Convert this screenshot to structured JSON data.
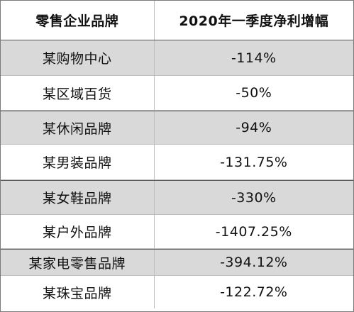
{
  "table": {
    "headers": {
      "name": "零售企业品牌",
      "value": "2020年一季度净利增幅"
    },
    "rows": [
      {
        "name": "某购物中心",
        "value": "-114%"
      },
      {
        "name": "某区域百货",
        "value": "-50%"
      },
      {
        "name": "某休闲品牌",
        "value": "-94%"
      },
      {
        "name": "某男装品牌",
        "value": "-131.75%"
      },
      {
        "name": "某女鞋品牌",
        "value": "-330%"
      },
      {
        "name": "某户外品牌",
        "value": "-1407.25%"
      },
      {
        "name": "某家电零售品牌",
        "value": "-394.12%"
      },
      {
        "name": "某珠宝品牌",
        "value": "-122.72%"
      }
    ]
  },
  "colors": {
    "shaded_row": "#d9d9d9",
    "white_row": "#ffffff",
    "border": "#7a7a7a"
  }
}
